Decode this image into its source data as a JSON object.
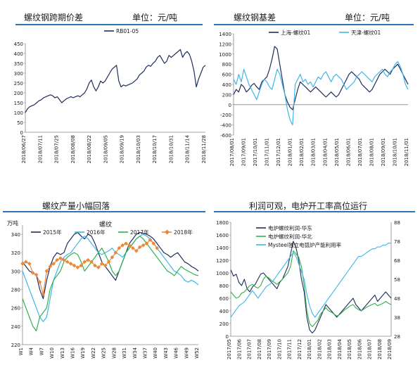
{
  "colors": {
    "dark_navy": "#1f2d5c",
    "light_blue": "#3fb6ea",
    "green": "#2fb24a",
    "orange": "#e98a3a",
    "blue": "#2e75b6",
    "gray": "#9a9a9a",
    "title_bar": "#2e75b6"
  },
  "panels": {
    "p1": {
      "title": "螺纹钢跨期价差",
      "unit": "单位：元/吨"
    },
    "p2": {
      "title": "螺纹钢基差",
      "unit": "单位：元/吨"
    },
    "p3": {
      "title": "螺纹产量小幅回落"
    },
    "p4": {
      "title": "利润可观，电炉开工率高位运行"
    }
  },
  "chart_data": [
    {
      "id": "p1",
      "type": "line",
      "ylim": [
        0,
        450
      ],
      "yticks": [
        0,
        50,
        100,
        150,
        200,
        250,
        300,
        350,
        400,
        450
      ],
      "xticks": [
        "2018/06/27",
        "2018/07/11",
        "2018/07/25",
        "2018/08/08",
        "2018/08/22",
        "2018/09/05",
        "2018/09/19",
        "2018/10/03",
        "2018/10/17",
        "2018/10/31",
        "2018/11/14",
        "2018/11/28"
      ],
      "series": [
        {
          "name": "RB01-05",
          "color": "#1f2d5c",
          "values": [
            100,
            120,
            130,
            135,
            140,
            150,
            160,
            165,
            175,
            180,
            185,
            190,
            185,
            175,
            180,
            165,
            150,
            160,
            170,
            175,
            180,
            175,
            180,
            185,
            180,
            190,
            200,
            220,
            250,
            265,
            230,
            210,
            230,
            260,
            250,
            260,
            280,
            300,
            320,
            330,
            340,
            260,
            230,
            240,
            235,
            240,
            245,
            250,
            260,
            270,
            290,
            300,
            310,
            330,
            340,
            335,
            350,
            360,
            380,
            390,
            370,
            350,
            360,
            390,
            380,
            390,
            400,
            410,
            420,
            380,
            400,
            410,
            395,
            360,
            310,
            230,
            270,
            300,
            330,
            340
          ]
        }
      ]
    },
    {
      "id": "p2",
      "type": "line",
      "ylim": [
        -600,
        1400
      ],
      "yticks": [
        -600,
        -400,
        -200,
        0,
        200,
        400,
        600,
        800,
        1000,
        1200,
        1400
      ],
      "xticks": [
        "2017/08/01",
        "2017/09/01",
        "2017/10/01",
        "2017/11/01",
        "2017/12/01",
        "2018/01/01",
        "2018/02/01",
        "2018/03/01",
        "2018/04/01",
        "2018/05/01",
        "2018/06/01",
        "2018/07/01",
        "2018/08/01",
        "2018/09/01",
        "2018/10/01",
        "2018/11/01"
      ],
      "series": [
        {
          "name": "上海-螺纹01",
          "color": "#1f2d5c",
          "values": [
            200,
            300,
            250,
            400,
            350,
            250,
            300,
            380,
            420,
            350,
            300,
            450,
            500,
            550,
            700,
            900,
            1150,
            1100,
            800,
            500,
            200,
            50,
            -50,
            -100,
            100,
            300,
            450,
            400,
            350,
            300,
            250,
            300,
            350,
            300,
            250,
            200,
            150,
            200,
            250,
            200,
            150,
            200,
            300,
            400,
            500,
            600,
            650,
            600,
            550,
            500,
            400,
            350,
            300,
            250,
            300,
            400,
            500,
            600,
            650,
            700,
            650,
            600,
            700,
            750,
            800,
            700,
            600,
            500,
            400
          ]
        },
        {
          "name": "天津-螺纹01",
          "color": "#3fb6ea",
          "values": [
            500,
            400,
            600,
            450,
            700,
            550,
            400,
            300,
            200,
            100,
            250,
            400,
            500,
            450,
            350,
            300,
            500,
            700,
            600,
            400,
            200,
            -100,
            -300,
            -400,
            400,
            500,
            600,
            450,
            500,
            400,
            450,
            350,
            450,
            550,
            500,
            600,
            650,
            550,
            450,
            550,
            600,
            550,
            500,
            400,
            300,
            350,
            400,
            450,
            550,
            600,
            650,
            600,
            550,
            500,
            450,
            550,
            600,
            650,
            700,
            600,
            550,
            650,
            700,
            800,
            850,
            750,
            600,
            400,
            300
          ]
        }
      ]
    },
    {
      "id": "p3",
      "type": "line",
      "ylabel": "万吨",
      "title": "螺纹",
      "ylim": [
        220,
        350
      ],
      "yticks": [
        220,
        240,
        260,
        280,
        300,
        320,
        340
      ],
      "xticks": [
        "W1",
        "W4",
        "W7",
        "W10",
        "W13",
        "W16",
        "W19",
        "W22",
        "W25",
        "W28",
        "W31",
        "W34",
        "W37",
        "W40",
        "W43",
        "W46",
        "W49",
        "W52"
      ],
      "series": [
        {
          "name": "2015年",
          "color": "#1f2d5c",
          "values": [
            310,
            305,
            300,
            298,
            296,
            280,
            270,
            290,
            305,
            315,
            320,
            318,
            320,
            330,
            335,
            340,
            342,
            338,
            335,
            340,
            338,
            330,
            320,
            310,
            305,
            300,
            295,
            290,
            300,
            310,
            320,
            330,
            335,
            340,
            342,
            341,
            340,
            338,
            335,
            330,
            325,
            320,
            318,
            315,
            318,
            320,
            315,
            310,
            308,
            305,
            303,
            300
          ]
        },
        {
          "name": "2016年",
          "color": "#3fb6ea",
          "values": [
            300,
            290,
            280,
            270,
            260,
            250,
            245,
            250,
            270,
            290,
            300,
            310,
            315,
            318,
            320,
            325,
            330,
            335,
            338,
            335,
            330,
            325,
            320,
            318,
            320,
            322,
            325,
            320,
            318,
            315,
            320,
            325,
            330,
            335,
            338,
            340,
            338,
            335,
            330,
            325,
            320,
            315,
            310,
            305,
            300,
            298,
            295,
            290,
            288,
            290,
            288,
            285
          ]
        },
        {
          "name": "2017年",
          "color": "#2fb24a",
          "values": [
            270,
            260,
            250,
            240,
            235,
            250,
            255,
            260,
            280,
            290,
            295,
            300,
            310,
            315,
            318,
            320,
            318,
            310,
            300,
            305,
            310,
            315,
            320,
            325,
            318,
            310,
            300,
            295,
            300,
            310,
            320,
            325,
            330,
            335,
            338,
            335,
            330,
            325,
            320,
            315,
            310,
            305,
            300,
            298,
            295,
            300,
            305,
            302,
            300,
            298,
            296,
            295
          ]
        },
        {
          "name": "2018年",
          "color": "#e98a3a",
          "values": [
            308,
            310,
            308,
            298,
            296,
            288,
            275,
            300,
            305,
            308,
            312,
            314,
            312,
            310,
            308,
            306,
            304,
            306,
            310,
            312,
            310,
            306,
            304,
            308,
            306,
            310,
            315,
            320,
            325,
            328,
            330,
            328,
            325,
            322,
            326,
            328,
            330,
            334,
            330,
            325
          ]
        }
      ]
    },
    {
      "id": "p4",
      "type": "line",
      "ylim": [
        0,
        1800
      ],
      "yticks": [
        0,
        200,
        400,
        600,
        800,
        1000,
        1200,
        1400,
        1600,
        1800
      ],
      "y2lim": [
        28,
        88
      ],
      "y2ticks": [
        28,
        38,
        48,
        58,
        68,
        78,
        88
      ],
      "xticks": [
        "2017/05",
        "2017/06",
        "2017/07",
        "2017/08",
        "2017/09",
        "2017/10",
        "2017/11",
        "2017/12",
        "2018/01",
        "2018/02",
        "2018/03",
        "2018/04",
        "2018/05",
        "2018/06",
        "2018/07",
        "2018/08",
        "2018/09"
      ],
      "series": [
        {
          "name": "电炉螺纹利润-华东",
          "color": "#1f2d5c",
          "axis": "left",
          "values": [
            1050,
            950,
            980,
            850,
            800,
            900,
            750,
            700,
            780,
            820,
            900,
            980,
            1000,
            950,
            900,
            850,
            800,
            750,
            850,
            900,
            1000,
            1100,
            1300,
            1500,
            1400,
            1200,
            900,
            700,
            300,
            100,
            50,
            100,
            200,
            300,
            400,
            500,
            450,
            400,
            350,
            300,
            350,
            400,
            450,
            500,
            550,
            600,
            500,
            450,
            400,
            450,
            500,
            550,
            600,
            650,
            550,
            600,
            650,
            700,
            650,
            600
          ]
        },
        {
          "name": "电炉螺纹利润-华北",
          "color": "#2fb24a",
          "axis": "left",
          "values": [
            700,
            650,
            600,
            620,
            680,
            700,
            750,
            800,
            820,
            780,
            760,
            800,
            900,
            950,
            920,
            880,
            850,
            820,
            860,
            900,
            950,
            1000,
            1100,
            1350,
            1300,
            1250,
            1100,
            800,
            400,
            200,
            150,
            200,
            250,
            350,
            400,
            450,
            400,
            380,
            350,
            320,
            340,
            380,
            420,
            450,
            480,
            500,
            450,
            420,
            400,
            430,
            460,
            480,
            500,
            520,
            480,
            500,
            520,
            550,
            520,
            500
          ]
        },
        {
          "name": "Mysteel独立电弧炉产能利用率",
          "color": "#3fb6ea",
          "axis": "right",
          "values": [
            38,
            40,
            42,
            44,
            45,
            46,
            48,
            50,
            52,
            50,
            48,
            50,
            52,
            54,
            55,
            56,
            58,
            60,
            62,
            64,
            66,
            68,
            70,
            72,
            70,
            66,
            62,
            58,
            50,
            44,
            40,
            38,
            40,
            42,
            44,
            46,
            48,
            50,
            52,
            54,
            56,
            58,
            60,
            62,
            64,
            66,
            68,
            70,
            70,
            71,
            72,
            73,
            74,
            74,
            75,
            75,
            76,
            76,
            77,
            77
          ]
        }
      ]
    }
  ]
}
